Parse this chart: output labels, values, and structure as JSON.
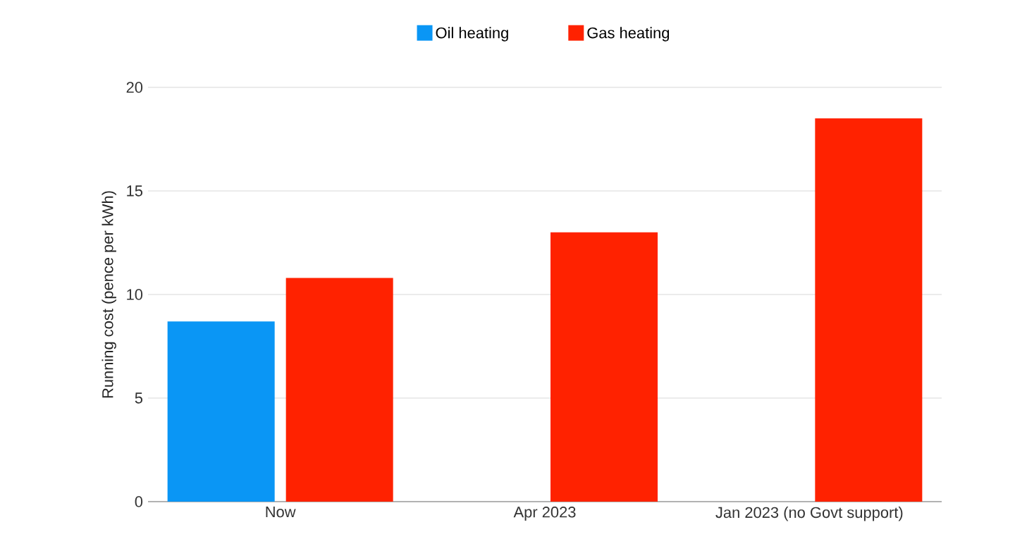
{
  "chart_data": {
    "type": "bar",
    "ylabel": "Running cost (pence per kWh)",
    "categories": [
      "Now",
      "Apr 2023",
      "Jan 2023 (no Govt support)"
    ],
    "series": [
      {
        "name": "Oil heating",
        "color": "#0a96f5",
        "values": [
          8.7,
          null,
          null
        ]
      },
      {
        "name": "Gas heating",
        "color": "#ff2200",
        "values": [
          10.8,
          13.0,
          18.5
        ]
      }
    ],
    "ylim": [
      0,
      20
    ],
    "yticks": [
      0,
      5,
      10,
      15,
      20
    ],
    "grid": "y",
    "legend": "top"
  }
}
